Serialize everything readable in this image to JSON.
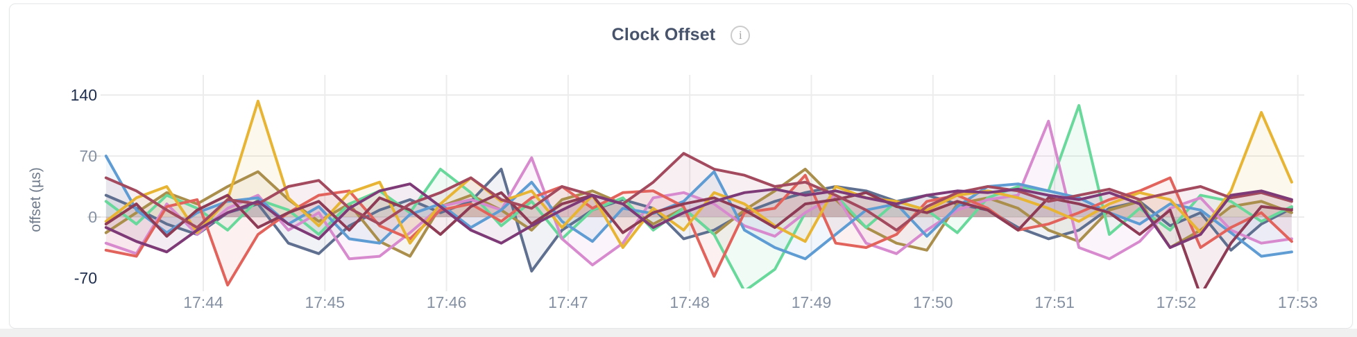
{
  "card": {
    "title": "Clock Offset",
    "info_icon": "i"
  },
  "colors": {
    "title": "#47536b",
    "axis_extreme_label": "#1e2d4d",
    "axis_mid_label": "#8591a3",
    "gridline": "#ececec",
    "tick_dash": "#d9d9d9",
    "card_border": "#e4e6e8",
    "page_strip": "#f0f0f0"
  },
  "chart_data": {
    "type": "line",
    "title": "Clock Offset",
    "xlabel": "",
    "ylabel": "offset (µs)",
    "ylim": [
      -70,
      140
    ],
    "yticks": [
      140,
      70,
      0,
      -70
    ],
    "xticks": [
      "17:44",
      "17:45",
      "17:46",
      "17:47",
      "17:48",
      "17:49",
      "17:50",
      "17:51",
      "17:52",
      "17:53"
    ],
    "grid": true,
    "legend_position": "none",
    "x_unit": "time (HH:MM, decimal minutes after 17:00)",
    "y_unit": "microseconds",
    "x": [
      43.2,
      43.45,
      43.7,
      43.95,
      44.2,
      44.45,
      44.7,
      44.95,
      45.2,
      45.45,
      45.7,
      45.95,
      46.2,
      46.45,
      46.7,
      46.95,
      47.2,
      47.45,
      47.7,
      47.95,
      48.2,
      48.45,
      48.7,
      48.95,
      49.2,
      49.45,
      49.7,
      49.95,
      50.2,
      50.45,
      50.7,
      50.95,
      51.2,
      51.45,
      51.7,
      51.95,
      52.2,
      52.45,
      52.7,
      52.95
    ],
    "series": [
      {
        "name": "slate",
        "color": "#5e6f90",
        "values": [
          25,
          10,
          -8,
          -20,
          5,
          15,
          -30,
          -42,
          -10,
          8,
          20,
          5,
          18,
          55,
          -62,
          -15,
          8,
          20,
          10,
          -25,
          -15,
          5,
          18,
          28,
          35,
          30,
          18,
          25,
          15,
          8,
          -12,
          -25,
          -15,
          10,
          18,
          -10,
          5,
          -38,
          -8,
          10
        ]
      },
      {
        "name": "khaki",
        "color": "#aa8e4b",
        "values": [
          -18,
          5,
          28,
          15,
          35,
          52,
          20,
          -5,
          15,
          -28,
          -45,
          12,
          25,
          8,
          -15,
          20,
          30,
          15,
          -8,
          10,
          -20,
          8,
          30,
          55,
          20,
          -12,
          -30,
          -38,
          15,
          22,
          10,
          -15,
          -28,
          8,
          18,
          -35,
          -15,
          12,
          18,
          5
        ]
      },
      {
        "name": "green",
        "color": "#69d89b",
        "values": [
          18,
          -8,
          25,
          10,
          -15,
          20,
          8,
          -20,
          15,
          30,
          5,
          55,
          28,
          -10,
          18,
          -25,
          8,
          22,
          -15,
          10,
          -20,
          -85,
          -60,
          5,
          25,
          -12,
          18,
          8,
          -18,
          22,
          35,
          30,
          128,
          -20,
          10,
          -15,
          25,
          18,
          -5,
          12
        ]
      },
      {
        "name": "orchid",
        "color": "#d88acf",
        "values": [
          -30,
          -42,
          15,
          -20,
          10,
          25,
          -15,
          5,
          -48,
          -45,
          -18,
          12,
          20,
          8,
          68,
          -25,
          -55,
          -30,
          22,
          28,
          15,
          -10,
          -22,
          5,
          25,
          -30,
          -42,
          -15,
          8,
          20,
          25,
          110,
          -35,
          -48,
          -28,
          10,
          22,
          -15,
          -30,
          -25
        ]
      },
      {
        "name": "blue",
        "color": "#5e9cd3",
        "values": [
          70,
          8,
          -18,
          5,
          18,
          22,
          -8,
          12,
          -25,
          -30,
          3,
          15,
          -12,
          8,
          40,
          -5,
          -28,
          10,
          4,
          18,
          52,
          -15,
          -35,
          -48,
          -20,
          8,
          15,
          -22,
          12,
          35,
          38,
          30,
          22,
          5,
          -8,
          15,
          8,
          -18,
          -45,
          -40
        ]
      },
      {
        "name": "salmon",
        "color": "#e2635c",
        "values": [
          -38,
          -45,
          12,
          20,
          -78,
          -20,
          5,
          25,
          30,
          -10,
          -25,
          8,
          15,
          -5,
          22,
          35,
          10,
          28,
          30,
          12,
          -68,
          5,
          10,
          48,
          -30,
          -35,
          -20,
          18,
          25,
          10,
          -15,
          -8,
          5,
          20,
          30,
          45,
          -35,
          -12,
          5,
          -28
        ]
      },
      {
        "name": "gold",
        "color": "#e7b434",
        "values": [
          -5,
          22,
          35,
          -18,
          20,
          133,
          22,
          -10,
          28,
          40,
          -30,
          15,
          45,
          18,
          30,
          -12,
          25,
          -35,
          10,
          -15,
          28,
          15,
          -10,
          -28,
          35,
          22,
          18,
          8,
          25,
          30,
          22,
          10,
          -5,
          15,
          28,
          20,
          -18,
          30,
          120,
          40
        ]
      },
      {
        "name": "wine",
        "color": "#8e3b55",
        "values": [
          -8,
          15,
          -22,
          8,
          25,
          -12,
          5,
          18,
          -15,
          22,
          8,
          -20,
          12,
          28,
          -8,
          15,
          25,
          -18,
          5,
          15,
          22,
          8,
          -12,
          15,
          20,
          28,
          12,
          5,
          18,
          8,
          -15,
          22,
          15,
          5,
          -20,
          8,
          -90,
          -30,
          12,
          8
        ]
      },
      {
        "name": "maroon",
        "color": "#a34a5f",
        "values": [
          45,
          30,
          8,
          -12,
          20,
          15,
          35,
          42,
          10,
          -8,
          15,
          28,
          45,
          20,
          10,
          35,
          25,
          15,
          40,
          73,
          55,
          48,
          35,
          40,
          25,
          8,
          -15,
          12,
          28,
          35,
          30,
          18,
          25,
          32,
          20,
          28,
          35,
          22,
          28,
          18
        ]
      },
      {
        "name": "plum",
        "color": "#7d3a76",
        "values": [
          -12,
          -28,
          -40,
          -15,
          5,
          18,
          -8,
          -25,
          10,
          30,
          38,
          12,
          -15,
          -30,
          -10,
          8,
          25,
          15,
          -12,
          5,
          18,
          28,
          32,
          25,
          30,
          22,
          15,
          25,
          30,
          28,
          32,
          25,
          20,
          28,
          15,
          -35,
          -20,
          25,
          30,
          20
        ]
      }
    ]
  }
}
